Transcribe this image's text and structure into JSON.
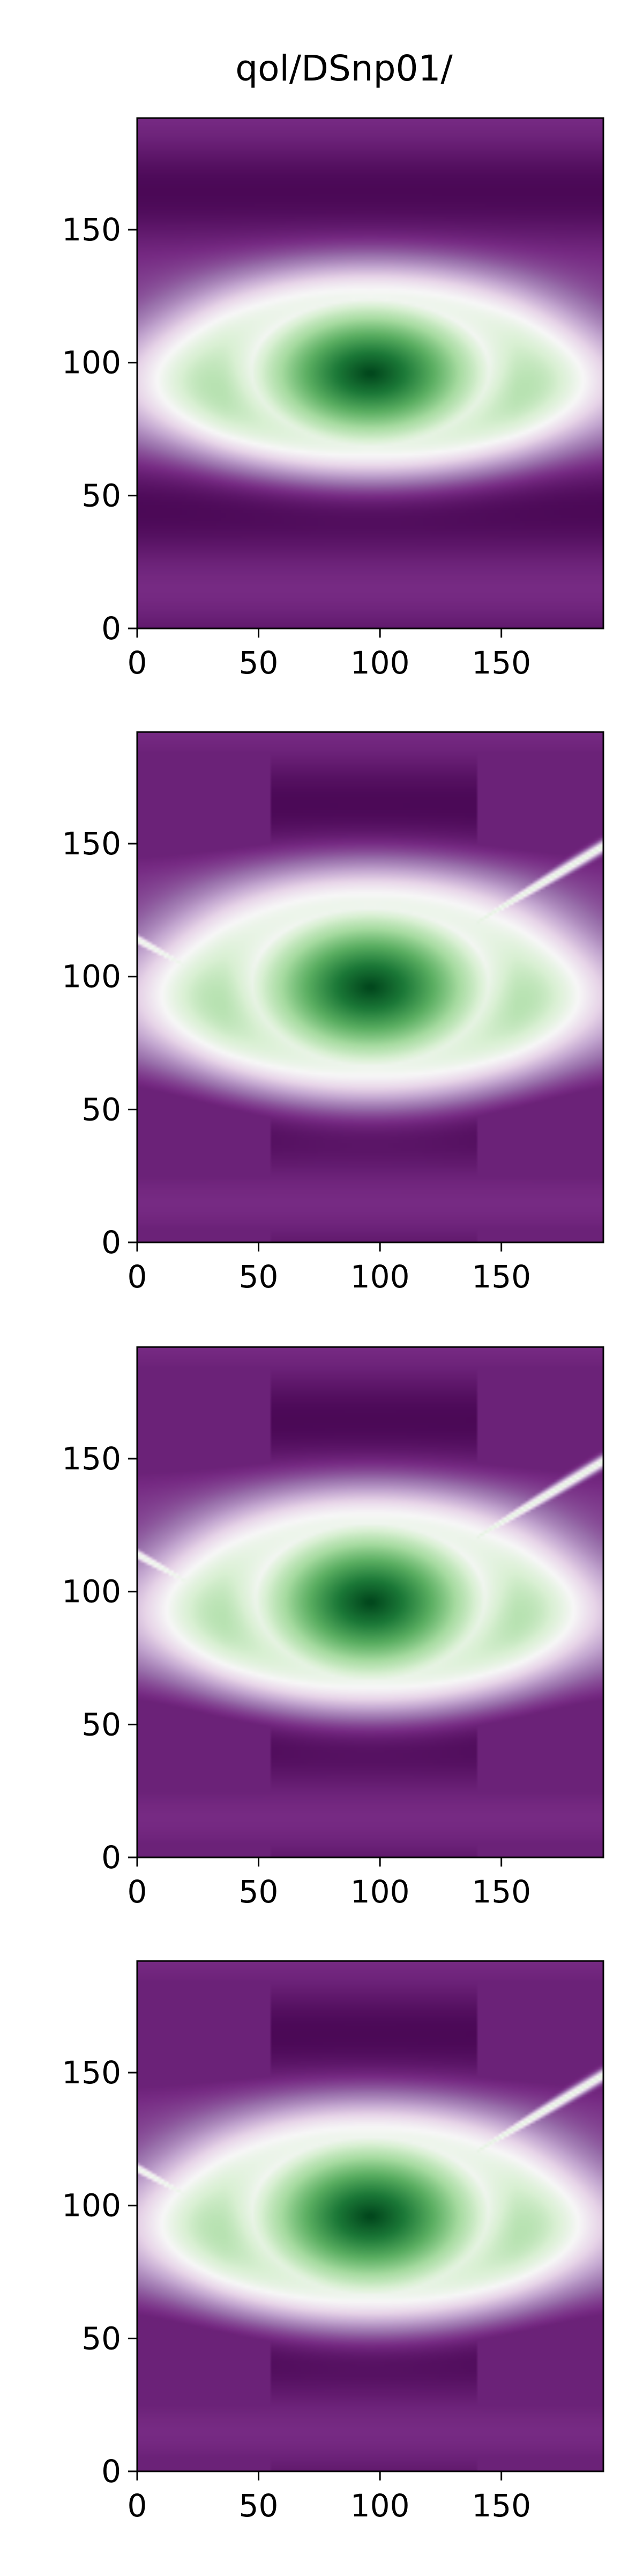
{
  "figure": {
    "title": "qol/DSnp01/"
  },
  "chart_data": [
    {
      "type": "heatmap",
      "title": "qol/DSnp01/",
      "xlabel": "",
      "ylabel": "",
      "xlim": [
        0,
        192
      ],
      "ylim": [
        0,
        192
      ],
      "xticks": [
        "0",
        "50",
        "100",
        "150"
      ],
      "yticks": [
        "0",
        "50",
        "100",
        "150"
      ],
      "colormap": "PRGn",
      "colormap_colors": [
        "#40004b",
        "#762a83",
        "#9970ab",
        "#c2a5cf",
        "#e7d4e8",
        "#f7f7f7",
        "#d9f0d3",
        "#a6dba0",
        "#5aae61",
        "#1b7837",
        "#00441b"
      ],
      "center": [
        96,
        96
      ],
      "core_radius": [
        50,
        28
      ],
      "ring_radius": [
        90,
        38
      ],
      "spiral_arms": false
    },
    {
      "type": "heatmap",
      "title": "",
      "xlabel": "",
      "ylabel": "",
      "xlim": [
        0,
        192
      ],
      "ylim": [
        0,
        192
      ],
      "xticks": [
        "0",
        "50",
        "100",
        "150"
      ],
      "yticks": [
        "0",
        "50",
        "100",
        "150"
      ],
      "colormap": "PRGn",
      "colormap_colors": [
        "#40004b",
        "#762a83",
        "#9970ab",
        "#c2a5cf",
        "#e7d4e8",
        "#f7f7f7",
        "#d9f0d3",
        "#a6dba0",
        "#5aae61",
        "#1b7837",
        "#00441b"
      ],
      "center": [
        96,
        96
      ],
      "core_radius": [
        50,
        30
      ],
      "ring_radius": [
        88,
        42
      ],
      "spiral_arms": true
    },
    {
      "type": "heatmap",
      "title": "",
      "xlabel": "",
      "ylabel": "",
      "xlim": [
        0,
        192
      ],
      "ylim": [
        0,
        192
      ],
      "xticks": [
        "0",
        "50",
        "100",
        "150"
      ],
      "yticks": [
        "0",
        "50",
        "100",
        "150"
      ],
      "colormap": "PRGn",
      "colormap_colors": [
        "#40004b",
        "#762a83",
        "#9970ab",
        "#c2a5cf",
        "#e7d4e8",
        "#f7f7f7",
        "#d9f0d3",
        "#a6dba0",
        "#5aae61",
        "#1b7837",
        "#00441b"
      ],
      "center": [
        96,
        96
      ],
      "core_radius": [
        48,
        30
      ],
      "ring_radius": [
        86,
        40
      ],
      "spiral_arms": true
    },
    {
      "type": "heatmap",
      "title": "",
      "xlabel": "",
      "ylabel": "",
      "xlim": [
        0,
        192
      ],
      "ylim": [
        0,
        192
      ],
      "xticks": [
        "0",
        "50",
        "100",
        "150"
      ],
      "yticks": [
        "0",
        "50",
        "100",
        "150"
      ],
      "colormap": "PRGn",
      "colormap_colors": [
        "#40004b",
        "#762a83",
        "#9970ab",
        "#c2a5cf",
        "#e7d4e8",
        "#f7f7f7",
        "#d9f0d3",
        "#a6dba0",
        "#5aae61",
        "#1b7837",
        "#00441b"
      ],
      "center": [
        96,
        96
      ],
      "core_radius": [
        50,
        30
      ],
      "ring_radius": [
        88,
        40
      ],
      "spiral_arms": true
    }
  ]
}
